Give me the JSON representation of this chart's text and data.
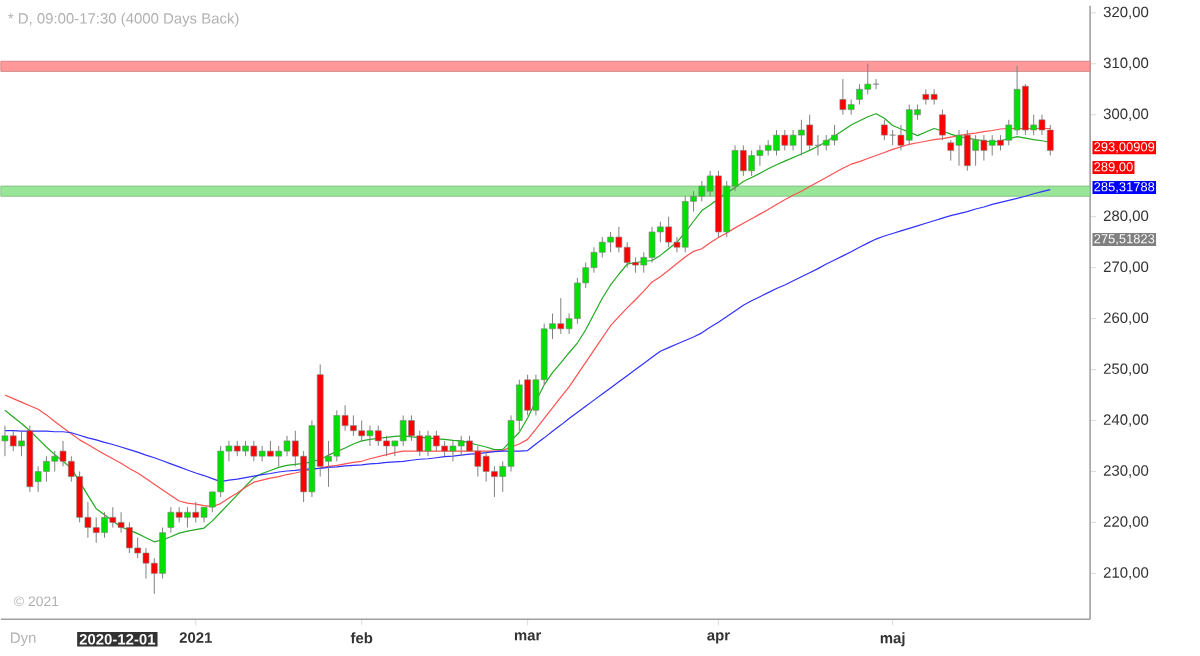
{
  "chart_data": {
    "type": "candlestick",
    "title": "* D, 09:00-17:30 (4000 Days Back)",
    "categories": [
      null,
      null,
      null,
      null,
      null,
      null,
      null,
      null,
      null,
      null,
      null,
      null,
      null,
      null,
      null,
      null,
      null,
      null,
      null,
      null,
      null,
      null,
      null,
      "2021",
      null,
      null,
      null,
      null,
      null,
      null,
      null,
      null,
      null,
      null,
      null,
      null,
      null,
      null,
      null,
      null,
      null,
      null,
      null,
      "feb",
      null,
      null,
      null,
      null,
      null,
      null,
      null,
      null,
      null,
      null,
      null,
      null,
      null,
      null,
      null,
      null,
      null,
      null,
      null,
      "mar",
      null,
      null,
      null,
      null,
      null,
      null,
      null,
      null,
      null,
      null,
      null,
      null,
      null,
      null,
      null,
      null,
      null,
      null,
      null,
      null,
      null,
      null,
      "apr",
      null,
      null,
      null,
      null,
      null,
      null,
      null,
      null,
      null,
      null,
      null,
      null,
      null,
      null,
      null,
      null,
      null,
      null,
      null,
      null,
      "maj",
      null,
      null,
      null,
      null,
      null,
      null,
      null,
      null,
      null,
      null,
      null,
      null,
      null,
      null,
      null,
      null,
      null,
      null,
      null
    ],
    "ohlc": [
      [
        236,
        239,
        233,
        237
      ],
      [
        237,
        238,
        234,
        235
      ],
      [
        235,
        238,
        233,
        236
      ],
      [
        238,
        239,
        226,
        227
      ],
      [
        228,
        231,
        226,
        230
      ],
      [
        230,
        233,
        228,
        232
      ],
      [
        232,
        234,
        230,
        233
      ],
      [
        234,
        236,
        231,
        232
      ],
      [
        232,
        233,
        228,
        229
      ],
      [
        229,
        230,
        220,
        221
      ],
      [
        221,
        224,
        217,
        219
      ],
      [
        219,
        221,
        216,
        218
      ],
      [
        218,
        222,
        217,
        221
      ],
      [
        221,
        223,
        219,
        220
      ],
      [
        220,
        222,
        218,
        219
      ],
      [
        219,
        220,
        214,
        215
      ],
      [
        215,
        217,
        213,
        214
      ],
      [
        214,
        215,
        209,
        212
      ],
      [
        212,
        213,
        206,
        210
      ],
      [
        210,
        219,
        209,
        218
      ],
      [
        219,
        223,
        218,
        222
      ],
      [
        222,
        223,
        220,
        221
      ],
      [
        221,
        223,
        219,
        222
      ],
      [
        222,
        224,
        220,
        221
      ],
      [
        221,
        223,
        220,
        223
      ],
      [
        223,
        226,
        222,
        226
      ],
      [
        226,
        235,
        225,
        234
      ],
      [
        234,
        236,
        232,
        235
      ],
      [
        235,
        236,
        233,
        234
      ],
      [
        234,
        236,
        233,
        235
      ],
      [
        235,
        236,
        232,
        233
      ],
      [
        233,
        235,
        232,
        234
      ],
      [
        234,
        236,
        233,
        233
      ],
      [
        233,
        235,
        231,
        234
      ],
      [
        234,
        237,
        233,
        236
      ],
      [
        236,
        238,
        231,
        233
      ],
      [
        233,
        234,
        224,
        226
      ],
      [
        226,
        240,
        225,
        239
      ],
      [
        249,
        251,
        229,
        231
      ],
      [
        232,
        236,
        227,
        233
      ],
      [
        233,
        242,
        232,
        241
      ],
      [
        241,
        243,
        238,
        239
      ],
      [
        239,
        241,
        237,
        238
      ],
      [
        238,
        240,
        236,
        237
      ],
      [
        237,
        239,
        235,
        238
      ],
      [
        238,
        239,
        235,
        236
      ],
      [
        236,
        237,
        233,
        235
      ],
      [
        235,
        236,
        233,
        236
      ],
      [
        236,
        241,
        235,
        240
      ],
      [
        240,
        241,
        236,
        237
      ],
      [
        237,
        238,
        233,
        234
      ],
      [
        234,
        238,
        233,
        237
      ],
      [
        237,
        238,
        234,
        235
      ],
      [
        235,
        236,
        233,
        234
      ],
      [
        234,
        236,
        232,
        235
      ],
      [
        235,
        237,
        233,
        236
      ],
      [
        236,
        237,
        234,
        234
      ],
      [
        234,
        235,
        229,
        231
      ],
      [
        233,
        234,
        228,
        230
      ],
      [
        230,
        231,
        225,
        229
      ],
      [
        229,
        232,
        226,
        231
      ],
      [
        231,
        241,
        230,
        240
      ],
      [
        240,
        248,
        238,
        247
      ],
      [
        248,
        249,
        241,
        242
      ],
      [
        242,
        249,
        241,
        248
      ],
      [
        248,
        259,
        247,
        258
      ],
      [
        258,
        261,
        256,
        259
      ],
      [
        259,
        264,
        257,
        258
      ],
      [
        258,
        261,
        257,
        260
      ],
      [
        260,
        268,
        259,
        267
      ],
      [
        267,
        271,
        266,
        270
      ],
      [
        270,
        274,
        269,
        273
      ],
      [
        273,
        276,
        272,
        275
      ],
      [
        275,
        277,
        273,
        276
      ],
      [
        276,
        278,
        273,
        274
      ],
      [
        274,
        275,
        270,
        271
      ],
      [
        271,
        272,
        269,
        270.5
      ],
      [
        270.5,
        273,
        269,
        272
      ],
      [
        272,
        278,
        271,
        277
      ],
      [
        277,
        279,
        275,
        278
      ],
      [
        278,
        280,
        274,
        275
      ],
      [
        275,
        276,
        273,
        274
      ],
      [
        274,
        284,
        273,
        283
      ],
      [
        283,
        285,
        281,
        284
      ],
      [
        284,
        287,
        283,
        286
      ],
      [
        285,
        289,
        284,
        288
      ],
      [
        288,
        289,
        276,
        277
      ],
      [
        277,
        287,
        276,
        286
      ],
      [
        286,
        294,
        285,
        293
      ],
      [
        293,
        294,
        288,
        289
      ],
      [
        289,
        293,
        288,
        292
      ],
      [
        292,
        294,
        290,
        293
      ],
      [
        293,
        295,
        292,
        294
      ],
      [
        293,
        297,
        292,
        296
      ],
      [
        296,
        297,
        293,
        294
      ],
      [
        294,
        297,
        293,
        296
      ],
      [
        296,
        299,
        292,
        297
      ],
      [
        298,
        300,
        293,
        294
      ],
      [
        294,
        296,
        292,
        294
      ],
      [
        294,
        296,
        293,
        295
      ],
      [
        295,
        298,
        294,
        296
      ],
      [
        303,
        307,
        300,
        301
      ],
      [
        301,
        303,
        300,
        302
      ],
      [
        303,
        306,
        302,
        305
      ],
      [
        305,
        310,
        304,
        306
      ],
      [
        306,
        307,
        305,
        306
      ],
      [
        298,
        299,
        295,
        296
      ],
      [
        296,
        297,
        294,
        296
      ],
      [
        296,
        298,
        293,
        294
      ],
      [
        295,
        302,
        294,
        301
      ],
      [
        300,
        302,
        299,
        301
      ],
      [
        304,
        305,
        302,
        303
      ],
      [
        304,
        305,
        302,
        303
      ],
      [
        300,
        301,
        295,
        296
      ],
      [
        294.5,
        295,
        291,
        293
      ],
      [
        294,
        297,
        290,
        296
      ],
      [
        296,
        297,
        289,
        290
      ],
      [
        293,
        296,
        290,
        295
      ],
      [
        295,
        296,
        291,
        293
      ],
      [
        294,
        296,
        292,
        295
      ],
      [
        295,
        296,
        293,
        294
      ],
      [
        295,
        299,
        294,
        298
      ],
      [
        297,
        309.6,
        296,
        305
      ],
      [
        305.6,
        306,
        296,
        297
      ],
      [
        297,
        300,
        296,
        298
      ],
      [
        299,
        300,
        296,
        297
      ],
      [
        297,
        298,
        292,
        293
      ]
    ],
    "series": [
      {
        "type": "line",
        "color": "#22aa22",
        "values": [
          242,
          240.7,
          239.4,
          238,
          236.4,
          234.8,
          233.3,
          232,
          230.6,
          228,
          225.3,
          222.7,
          221.5,
          220.3,
          219.1,
          218.5,
          217.8,
          217,
          216.2,
          216.6,
          217.2,
          217.9,
          218.3,
          218.6,
          218.9,
          220.3,
          222,
          223.7,
          225.4,
          227.1,
          228.8,
          229.6,
          230.2,
          230.8,
          231.2,
          231.4,
          231.6,
          231.9,
          232.4,
          233.2,
          233.9,
          234.6,
          235.4,
          236,
          236.3,
          236.5,
          236.7,
          236.9,
          237,
          236.8,
          236.7,
          236.6,
          236.4,
          236.3,
          236.1,
          236,
          235.6,
          235.2,
          234.8,
          234.3,
          234.3,
          236,
          237.7,
          240.5,
          243.8,
          247,
          249.4,
          251.3,
          253.3,
          255.2,
          257.8,
          260.9,
          264,
          266.6,
          268.7,
          270.7,
          271,
          271.2,
          271.4,
          272.4,
          273.7,
          275,
          276.9,
          279.1,
          281.2,
          282.3,
          283.5,
          284.6,
          285.7,
          286.9,
          287.7,
          288.5,
          289.4,
          290.2,
          290.9,
          291.6,
          292.3,
          293,
          293.8,
          294.7,
          295.8,
          296.9,
          298,
          298.8,
          299.6,
          300.2,
          299.3,
          297.9,
          297.2,
          296.6,
          295.9,
          296.6,
          297.3,
          296.8,
          296.2,
          295.7,
          295.4,
          295.1,
          294.9,
          294.6,
          294.9,
          295.3,
          295.7,
          295.4,
          295.1,
          294.9,
          294.6
        ]
      },
      {
        "type": "line",
        "color": "#ff5050",
        "values": [
          245,
          244.3,
          243.6,
          242.9,
          242.2,
          241.1,
          239.8,
          238.6,
          237.4,
          236.2,
          235.3,
          234.3,
          233.4,
          232.5,
          231.6,
          230.6,
          229.7,
          228.6,
          227.5,
          226.4,
          225.3,
          224.2,
          223.8,
          223.6,
          223.3,
          223.1,
          223.7,
          224.8,
          225.8,
          226.9,
          227.9,
          228.3,
          228.7,
          229,
          229.4,
          229.7,
          230.1,
          230.4,
          230.7,
          231,
          231.2,
          231.5,
          231.8,
          232,
          232.5,
          232.9,
          233.3,
          233.7,
          234,
          234,
          234,
          234,
          234,
          234,
          234,
          234,
          234,
          234,
          234,
          234,
          234.1,
          234.8,
          235.4,
          236.3,
          238.3,
          240.4,
          242.5,
          244.6,
          246.6,
          249,
          251.4,
          253.8,
          256.2,
          258.6,
          260.4,
          262.1,
          263.7,
          265.4,
          267.2,
          268.2,
          269.5,
          270.8,
          272.1,
          273.2,
          273.7,
          274.9,
          275.9,
          276.8,
          277.8,
          278.7,
          279.6,
          280.5,
          281.4,
          282.4,
          283.3,
          284.2,
          285,
          285.9,
          286.8,
          287.7,
          288.6,
          289.5,
          290.3,
          290.8,
          291.4,
          292,
          292.6,
          293.2,
          293.7,
          294.2,
          294.5,
          294.8,
          295.1,
          295.3,
          295.6,
          295.9,
          296.2,
          296.4,
          296.7,
          296.9,
          297.2,
          297.3,
          297.3,
          297.3,
          297.3,
          297.3,
          297.3
        ]
      },
      {
        "type": "line",
        "color": "#3030ff",
        "values": [
          238,
          238,
          237.9,
          237.9,
          237.9,
          237.9,
          237.8,
          237.8,
          237.6,
          237.1,
          236.6,
          236.2,
          235.7,
          235.3,
          234.8,
          234.3,
          233.8,
          233.2,
          232.7,
          232.1,
          231.5,
          230.9,
          230.3,
          229.7,
          229.2,
          228.6,
          228,
          228.3,
          228.5,
          228.8,
          229.1,
          229.4,
          229.6,
          229.9,
          230.1,
          230.2,
          230.4,
          230.5,
          230.6,
          230.8,
          230.9,
          231.1,
          231.2,
          231.3,
          231.5,
          231.6,
          231.8,
          231.9,
          232,
          232.2,
          232.4,
          232.5,
          232.7,
          232.9,
          233,
          233.2,
          233.4,
          233.5,
          233.7,
          233.9,
          234,
          234,
          234,
          234.1,
          235.4,
          236.6,
          237.9,
          239.1,
          240.4,
          241.6,
          242.8,
          244,
          245.2,
          246.4,
          247.6,
          248.8,
          250,
          251.2,
          252.4,
          253.6,
          254.3,
          255,
          255.7,
          256.4,
          257.2,
          258.3,
          259.3,
          260.4,
          261.5,
          262.6,
          263.5,
          264.3,
          265.1,
          265.9,
          266.6,
          267.4,
          268.2,
          269,
          269.8,
          270.7,
          271.5,
          272.3,
          273.1,
          274,
          274.8,
          275.6,
          276.2,
          276.7,
          277.2,
          277.7,
          278.2,
          278.7,
          279.2,
          279.7,
          280.2,
          280.6,
          281,
          281.5,
          281.9,
          282.4,
          282.8,
          283.2,
          283.6,
          284,
          284.5,
          284.9,
          285.3
        ]
      }
    ],
    "bands": [
      {
        "axis": "y",
        "from": 308.5,
        "to": 310.5,
        "color": "#ff9999"
      },
      {
        "axis": "y",
        "from": 284,
        "to": 286,
        "color": "#99e699"
      }
    ],
    "ylim": [
      201,
      321.4
    ],
    "yticks": [
      {
        "value": 210,
        "label": "210,00"
      },
      {
        "value": 220,
        "label": "220,00"
      },
      {
        "value": 230,
        "label": "230,00"
      },
      {
        "value": 240,
        "label": "240,00"
      },
      {
        "value": 250,
        "label": "250,00"
      },
      {
        "value": 260,
        "label": "260,00"
      },
      {
        "value": 270,
        "label": "270,00"
      },
      {
        "value": 280,
        "label": "280,00"
      },
      {
        "value": 300,
        "label": "300,00"
      },
      {
        "value": 310,
        "label": "310,00"
      },
      {
        "value": 320,
        "label": "320,00"
      }
    ],
    "annotations": [
      "© 2021",
      "Dyn",
      "2020-12-01",
      "293,00909",
      "289,00",
      "285,31788",
      "275,51823"
    ]
  }
}
